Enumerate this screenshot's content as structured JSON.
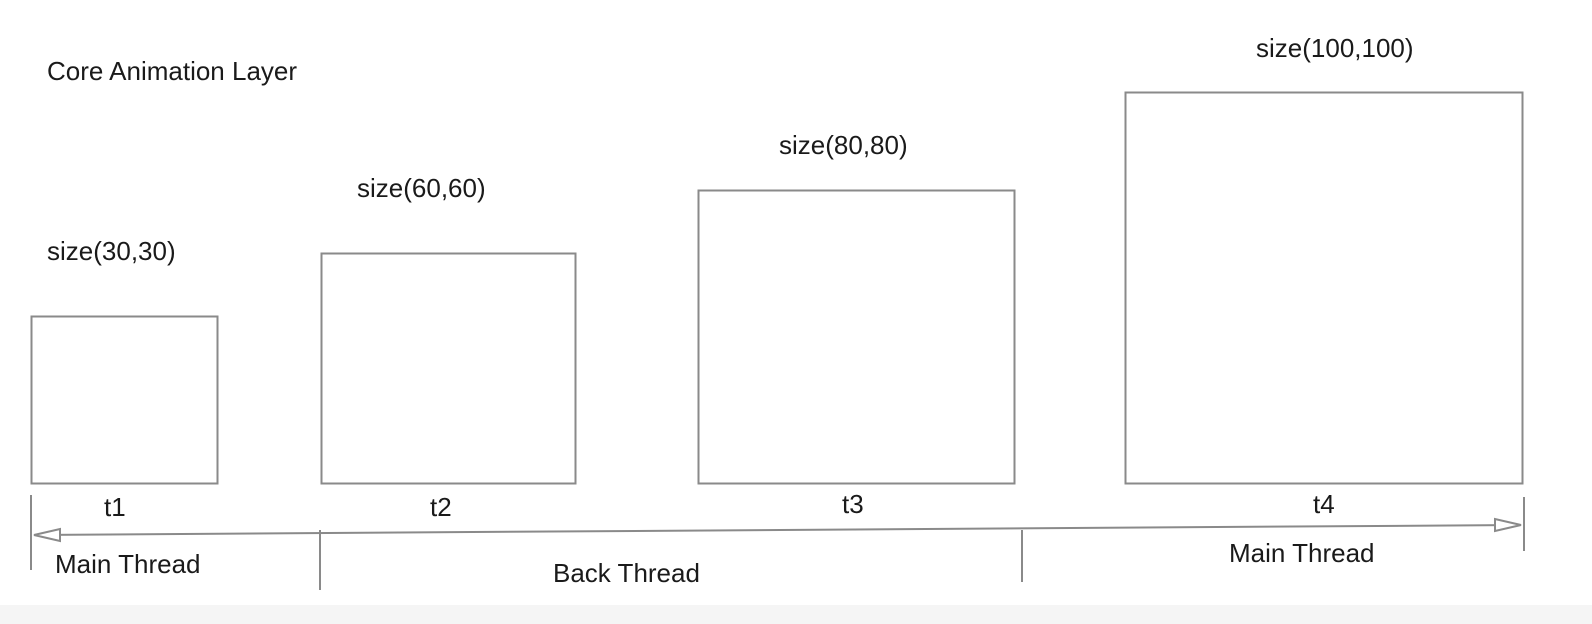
{
  "diagram": {
    "title": "Core Animation  Layer",
    "layers": [
      {
        "size_label": "size(30,30)",
        "time_label": "t1",
        "width": 30,
        "height": 30
      },
      {
        "size_label": "size(60,60)",
        "time_label": "t2",
        "width": 60,
        "height": 60
      },
      {
        "size_label": "size(80,80)",
        "time_label": "t3",
        "width": 80,
        "height": 80
      },
      {
        "size_label": "size(100,100)",
        "time_label": "t4",
        "width": 100,
        "height": 100
      }
    ],
    "threads": [
      {
        "label": "Main Thread"
      },
      {
        "label": "Back Thread"
      },
      {
        "label": "Main Thread"
      }
    ],
    "colors": {
      "stroke": "#888888",
      "text": "#1a1a1a",
      "background": "#ffffff"
    }
  }
}
